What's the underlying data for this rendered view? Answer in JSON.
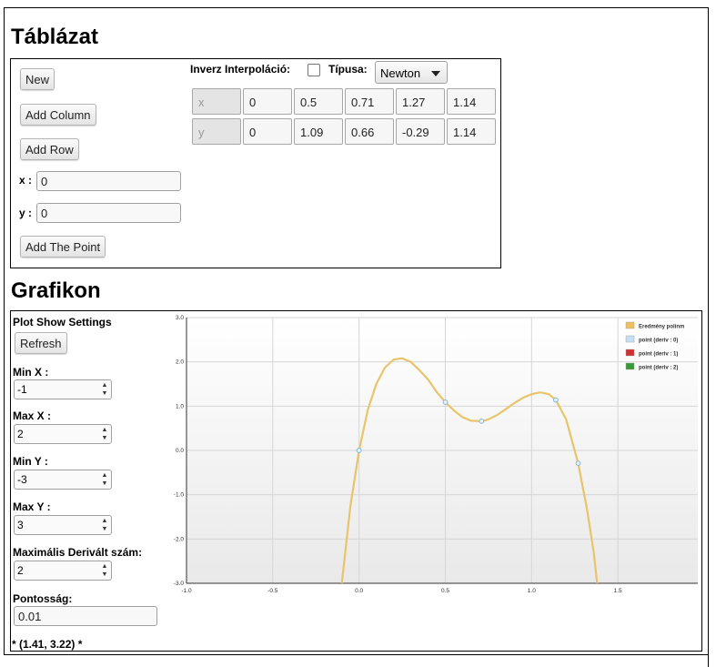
{
  "table_section": {
    "title": "Táblázat",
    "new_label": "New",
    "add_column_label": "Add Column",
    "add_row_label": "Add Row",
    "x_label": "x :",
    "x_value": "0",
    "y_label": "y :",
    "y_value": "0",
    "add_point_label": "Add The Point",
    "inverse_label": "Inverz Interpoláció:",
    "type_label": "Típusa:",
    "type_value": "Newton",
    "rows": [
      {
        "header": "x",
        "values": [
          "0",
          "0.5",
          "0.71",
          "1.27",
          "1.14"
        ]
      },
      {
        "header": "y",
        "values": [
          "0",
          "1.09",
          "0.66",
          "-0.29",
          "1.14"
        ]
      }
    ]
  },
  "plot_section": {
    "title": "Grafikon",
    "settings_label": "Plot Show Settings",
    "refresh_label": "Refresh",
    "min_x_label": "Min X :",
    "min_x_value": "-1",
    "max_x_label": "Max X :",
    "max_x_value": "2",
    "min_y_label": "Min Y :",
    "min_y_value": "-3",
    "max_y_label": "Max Y :",
    "max_y_value": "3",
    "max_deriv_label": "Maximális Derivált szám:",
    "max_deriv_value": "2",
    "precision_label": "Pontosság:",
    "precision_value": "0.01",
    "cursor_readout": "* (1.41, 3.22) *"
  },
  "chart_data": {
    "type": "line",
    "xlim": [
      -1.0,
      2.0
    ],
    "ylim": [
      -3.0,
      3.0
    ],
    "x_ticks": [
      "-1.0",
      "-0.5",
      "0.0",
      "0.5",
      "1.0",
      "1.5",
      "2.0"
    ],
    "y_ticks": [
      "3.0",
      "2.0",
      "1.0",
      "0.0",
      "-1.0",
      "-2.0",
      "-3.0"
    ],
    "grid": true,
    "legend_position": "top-right",
    "series": [
      {
        "name": "Eredmény polinm",
        "color": "#f0c060",
        "points": [
          [
            -0.1,
            -3.0
          ],
          [
            -0.05,
            -1.25
          ],
          [
            0.0,
            0.0
          ],
          [
            0.05,
            0.91
          ],
          [
            0.1,
            1.5
          ],
          [
            0.15,
            1.87
          ],
          [
            0.2,
            2.05
          ],
          [
            0.25,
            2.08
          ],
          [
            0.3,
            2.0
          ],
          [
            0.35,
            1.81
          ],
          [
            0.4,
            1.6
          ],
          [
            0.45,
            1.32
          ],
          [
            0.5,
            1.09
          ],
          [
            0.55,
            0.9
          ],
          [
            0.6,
            0.75
          ],
          [
            0.65,
            0.67
          ],
          [
            0.71,
            0.66
          ],
          [
            0.75,
            0.7
          ],
          [
            0.8,
            0.8
          ],
          [
            0.85,
            0.93
          ],
          [
            0.9,
            1.07
          ],
          [
            0.95,
            1.19
          ],
          [
            1.0,
            1.27
          ],
          [
            1.05,
            1.31
          ],
          [
            1.1,
            1.27
          ],
          [
            1.14,
            1.14
          ],
          [
            1.2,
            0.7
          ],
          [
            1.27,
            -0.29
          ],
          [
            1.32,
            -1.3
          ],
          [
            1.36,
            -2.3
          ],
          [
            1.38,
            -3.0
          ]
        ]
      },
      {
        "name": "point (deriv : 0)",
        "color": "#c6dff2",
        "points": [
          [
            0,
            0
          ],
          [
            0.5,
            1.09
          ],
          [
            0.71,
            0.66
          ],
          [
            1.27,
            -0.29
          ],
          [
            1.14,
            1.14
          ]
        ]
      },
      {
        "name": "point (deriv : 1)",
        "color": "#cc3333",
        "points": []
      },
      {
        "name": "point (deriv : 2)",
        "color": "#3a9a3a",
        "points": []
      }
    ]
  }
}
